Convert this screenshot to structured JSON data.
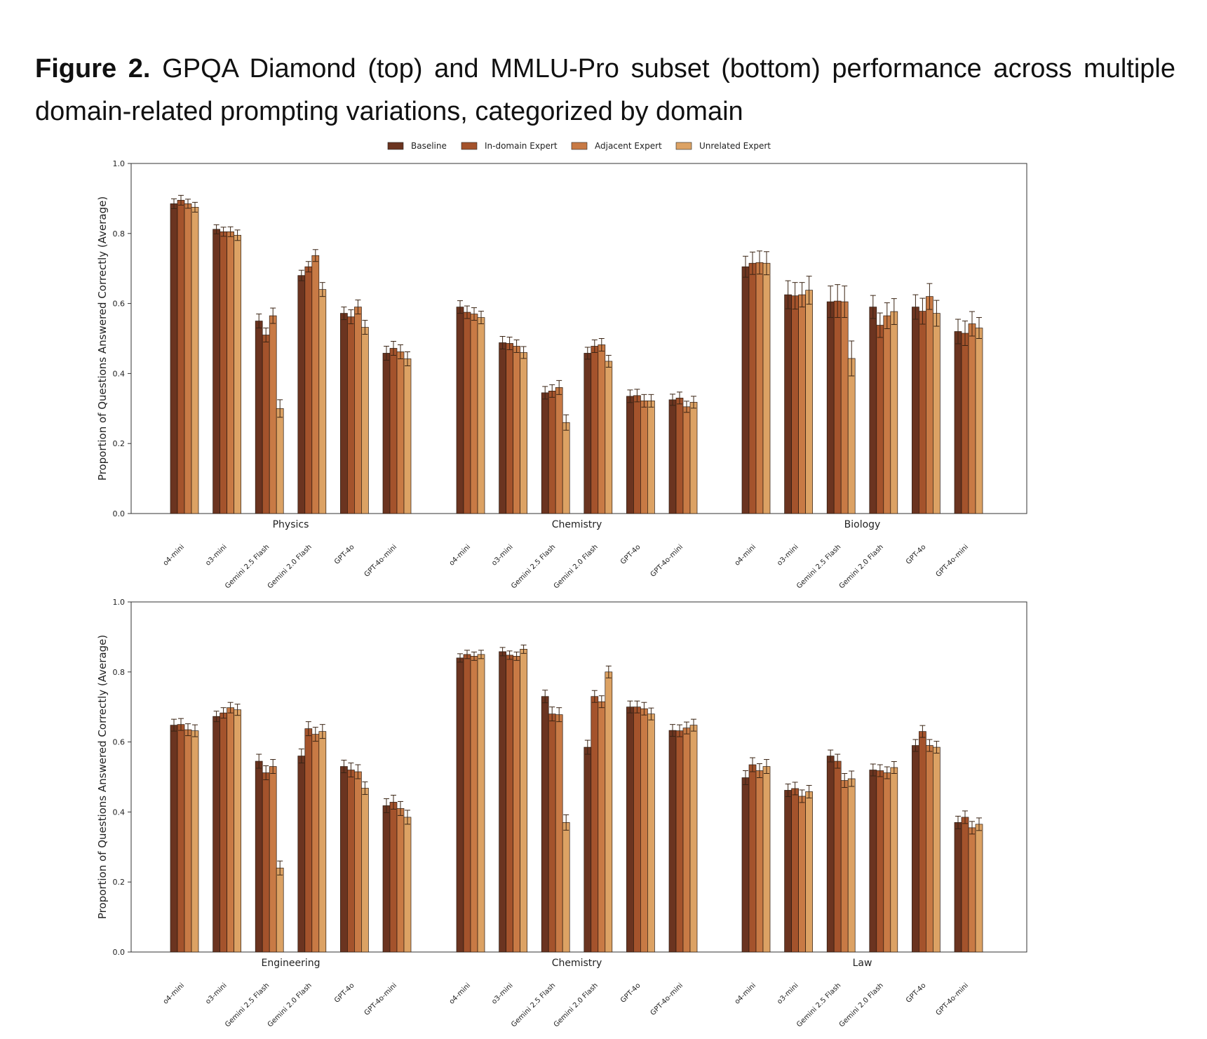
{
  "caption": {
    "label": "Figure 2.",
    "text": "GPQA Diamond (top) and MMLU-Pro subset (bottom) performance across multiple domain-related prompting variations, categorized by domain"
  },
  "colors": {
    "Baseline": "#6b3420",
    "In-domain Expert": "#a4532c",
    "Adjacent Expert": "#c87a45",
    "Unrelated Expert": "#dca264"
  },
  "legend": [
    "Baseline",
    "In-domain Expert",
    "Adjacent Expert",
    "Unrelated Expert"
  ],
  "chart_data": [
    {
      "type": "bar",
      "ylabel": "Proportion of Questions Answered Correctly (Average)",
      "ylim": [
        0,
        1.0
      ],
      "yticks": [
        "0.0",
        "0.2",
        "0.4",
        "0.6",
        "0.8",
        "1.0"
      ],
      "legend_position": "top-center",
      "series_names": [
        "Baseline",
        "In-domain Expert",
        "Adjacent Expert",
        "Unrelated Expert"
      ],
      "models": [
        "o4-mini",
        "o3-mini",
        "Gemini 2.5 Flash",
        "Gemini 2.0 Flash",
        "GPT-4o",
        "GPT-4o-mini"
      ],
      "groups": [
        {
          "domain": "Physics",
          "values": [
            [
              0.885,
              0.895,
              0.885,
              0.875
            ],
            [
              0.812,
              0.805,
              0.805,
              0.795
            ],
            [
              0.55,
              0.51,
              0.565,
              0.3
            ],
            [
              0.68,
              0.705,
              0.737,
              0.64
            ],
            [
              0.572,
              0.562,
              0.59,
              0.532
            ],
            [
              0.458,
              0.472,
              0.462,
              0.442
            ]
          ]
        },
        {
          "domain": "Chemistry",
          "values": [
            [
              0.59,
              0.575,
              0.57,
              0.56
            ],
            [
              0.488,
              0.486,
              0.478,
              0.46
            ],
            [
              0.345,
              0.35,
              0.36,
              0.26
            ],
            [
              0.458,
              0.478,
              0.482,
              0.435
            ],
            [
              0.335,
              0.337,
              0.322,
              0.322
            ],
            [
              0.325,
              0.33,
              0.305,
              0.318
            ]
          ]
        },
        {
          "domain": "Biology",
          "values": [
            [
              0.705,
              0.715,
              0.717,
              0.715
            ],
            [
              0.625,
              0.622,
              0.625,
              0.638
            ],
            [
              0.605,
              0.607,
              0.605,
              0.443
            ],
            [
              0.59,
              0.538,
              0.565,
              0.577
            ],
            [
              0.59,
              0.578,
              0.62,
              0.572
            ],
            [
              0.52,
              0.515,
              0.542,
              0.53
            ]
          ]
        }
      ],
      "errors": [
        [
          [
            0.014,
            0.014,
            0.013,
            0.014
          ],
          [
            0.013,
            0.013,
            0.014,
            0.015
          ],
          [
            0.02,
            0.02,
            0.022,
            0.025
          ],
          [
            0.015,
            0.015,
            0.017,
            0.02
          ],
          [
            0.018,
            0.02,
            0.02,
            0.02
          ],
          [
            0.02,
            0.02,
            0.02,
            0.02
          ]
        ],
        [
          [
            0.018,
            0.018,
            0.018,
            0.018
          ],
          [
            0.018,
            0.018,
            0.018,
            0.017
          ],
          [
            0.018,
            0.018,
            0.02,
            0.022
          ],
          [
            0.017,
            0.018,
            0.018,
            0.017
          ],
          [
            0.018,
            0.018,
            0.018,
            0.018
          ],
          [
            0.016,
            0.017,
            0.016,
            0.017
          ]
        ],
        [
          [
            0.03,
            0.032,
            0.033,
            0.033
          ],
          [
            0.04,
            0.038,
            0.035,
            0.04
          ],
          [
            0.045,
            0.047,
            0.045,
            0.05
          ],
          [
            0.033,
            0.035,
            0.037,
            0.037
          ],
          [
            0.035,
            0.037,
            0.037,
            0.037
          ],
          [
            0.035,
            0.035,
            0.035,
            0.03
          ]
        ]
      ]
    },
    {
      "type": "bar",
      "ylabel": "Proportion of Questions Answered Correctly (Average)",
      "ylim": [
        0,
        1.0
      ],
      "yticks": [
        "0.0",
        "0.2",
        "0.4",
        "0.6",
        "0.8",
        "1.0"
      ],
      "series_names": [
        "Baseline",
        "In-domain Expert",
        "Adjacent Expert",
        "Unrelated Expert"
      ],
      "models": [
        "o4-mini",
        "o3-mini",
        "Gemini 2.5 Flash",
        "Gemini 2.0 Flash",
        "GPT-4o",
        "GPT-4o-mini"
      ],
      "groups": [
        {
          "domain": "Engineering",
          "values": [
            [
              0.648,
              0.65,
              0.635,
              0.632
            ],
            [
              0.673,
              0.683,
              0.698,
              0.692
            ],
            [
              0.545,
              0.512,
              0.53,
              0.24
            ],
            [
              0.56,
              0.638,
              0.622,
              0.63
            ],
            [
              0.53,
              0.52,
              0.515,
              0.468
            ],
            [
              0.418,
              0.428,
              0.41,
              0.385
            ]
          ]
        },
        {
          "domain": "Chemistry",
          "values": [
            [
              0.84,
              0.85,
              0.845,
              0.85
            ],
            [
              0.858,
              0.848,
              0.845,
              0.865
            ],
            [
              0.73,
              0.68,
              0.678,
              0.37
            ],
            [
              0.585,
              0.73,
              0.715,
              0.8
            ],
            [
              0.7,
              0.7,
              0.695,
              0.68
            ],
            [
              0.633,
              0.632,
              0.64,
              0.648
            ]
          ]
        },
        {
          "domain": "Law",
          "values": [
            [
              0.498,
              0.535,
              0.518,
              0.53
            ],
            [
              0.462,
              0.467,
              0.445,
              0.458
            ],
            [
              0.56,
              0.545,
              0.49,
              0.495
            ],
            [
              0.52,
              0.518,
              0.512,
              0.527
            ],
            [
              0.59,
              0.63,
              0.59,
              0.585
            ],
            [
              0.37,
              0.385,
              0.355,
              0.365
            ]
          ]
        }
      ],
      "errors": [
        [
          [
            0.017,
            0.017,
            0.017,
            0.017
          ],
          [
            0.015,
            0.015,
            0.015,
            0.016
          ],
          [
            0.02,
            0.02,
            0.02,
            0.02
          ],
          [
            0.02,
            0.02,
            0.02,
            0.02
          ],
          [
            0.018,
            0.02,
            0.02,
            0.018
          ],
          [
            0.02,
            0.02,
            0.02,
            0.02
          ]
        ],
        [
          [
            0.012,
            0.012,
            0.012,
            0.012
          ],
          [
            0.012,
            0.012,
            0.012,
            0.012
          ],
          [
            0.018,
            0.02,
            0.02,
            0.022
          ],
          [
            0.02,
            0.017,
            0.017,
            0.017
          ],
          [
            0.017,
            0.017,
            0.018,
            0.017
          ],
          [
            0.017,
            0.017,
            0.017,
            0.017
          ]
        ],
        [
          [
            0.02,
            0.02,
            0.02,
            0.02
          ],
          [
            0.018,
            0.018,
            0.018,
            0.018
          ],
          [
            0.017,
            0.02,
            0.02,
            0.022
          ],
          [
            0.017,
            0.017,
            0.017,
            0.017
          ],
          [
            0.017,
            0.017,
            0.017,
            0.017
          ],
          [
            0.018,
            0.018,
            0.018,
            0.018
          ]
        ]
      ]
    }
  ]
}
